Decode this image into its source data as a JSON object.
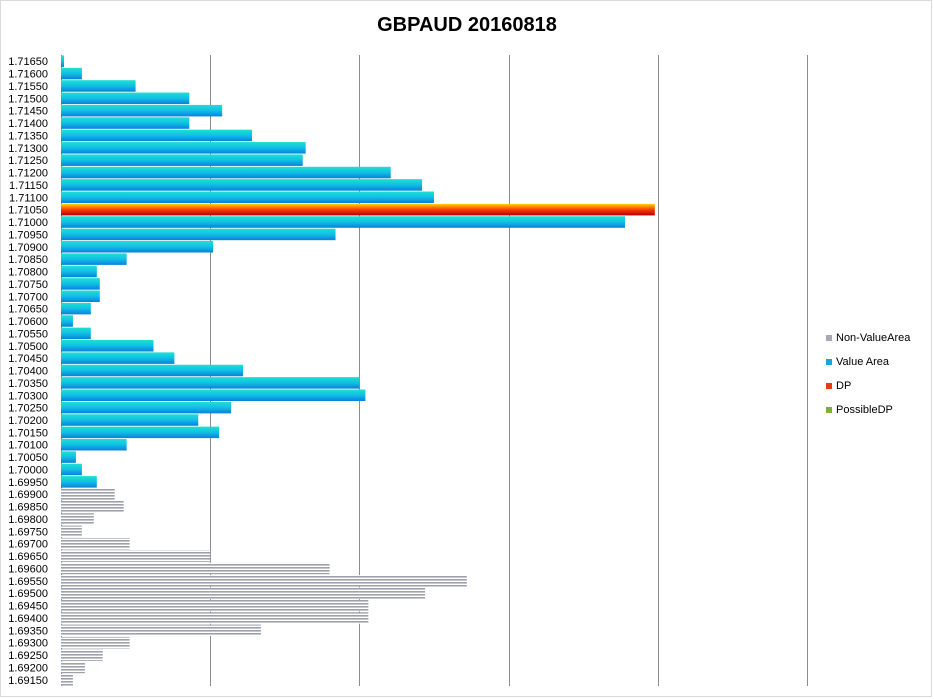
{
  "chart_data": {
    "type": "bar",
    "orientation": "horizontal",
    "title": "GBPAUD 20160818",
    "xlabel": "",
    "ylabel": "",
    "xlim": [
      0,
      50
    ],
    "x_gridline_values": [
      10,
      20,
      30,
      40,
      50
    ],
    "x_tick_labels_shown": false,
    "legend_placement": "right",
    "series": [
      {
        "name": "Non-ValueArea",
        "color": "#a6a9b3"
      },
      {
        "name": "Value Area",
        "color": "#1aa3e0"
      },
      {
        "name": "DP",
        "color": "#e63b0a"
      },
      {
        "name": "PossibleDP",
        "color": "#7fb038"
      }
    ],
    "bars": [
      {
        "price": "1.71650",
        "value": 0.2,
        "series": "Value Area"
      },
      {
        "price": "1.71600",
        "value": 1.4,
        "series": "Value Area"
      },
      {
        "price": "1.71550",
        "value": 5.0,
        "series": "Value Area"
      },
      {
        "price": "1.71500",
        "value": 8.6,
        "series": "Value Area"
      },
      {
        "price": "1.71450",
        "value": 10.8,
        "series": "Value Area"
      },
      {
        "price": "1.71400",
        "value": 8.6,
        "series": "Value Area"
      },
      {
        "price": "1.71350",
        "value": 12.8,
        "series": "Value Area"
      },
      {
        "price": "1.71300",
        "value": 16.4,
        "series": "Value Area"
      },
      {
        "price": "1.71250",
        "value": 16.2,
        "series": "Value Area"
      },
      {
        "price": "1.71200",
        "value": 22.1,
        "series": "Value Area"
      },
      {
        "price": "1.71150",
        "value": 24.2,
        "series": "Value Area"
      },
      {
        "price": "1.71100",
        "value": 25.0,
        "series": "Value Area"
      },
      {
        "price": "1.71050",
        "value": 39.8,
        "series": "DP"
      },
      {
        "price": "1.71000",
        "value": 37.8,
        "series": "Value Area"
      },
      {
        "price": "1.70950",
        "value": 18.4,
        "series": "Value Area"
      },
      {
        "price": "1.70900",
        "value": 10.2,
        "series": "Value Area"
      },
      {
        "price": "1.70850",
        "value": 4.4,
        "series": "Value Area"
      },
      {
        "price": "1.70800",
        "value": 2.4,
        "series": "Value Area"
      },
      {
        "price": "1.70750",
        "value": 2.6,
        "series": "Value Area"
      },
      {
        "price": "1.70700",
        "value": 2.6,
        "series": "Value Area"
      },
      {
        "price": "1.70650",
        "value": 2.0,
        "series": "Value Area"
      },
      {
        "price": "1.70600",
        "value": 0.8,
        "series": "Value Area"
      },
      {
        "price": "1.70550",
        "value": 2.0,
        "series": "Value Area"
      },
      {
        "price": "1.70500",
        "value": 6.2,
        "series": "Value Area"
      },
      {
        "price": "1.70450",
        "value": 7.6,
        "series": "Value Area"
      },
      {
        "price": "1.70400",
        "value": 12.2,
        "series": "Value Area"
      },
      {
        "price": "1.70350",
        "value": 20.0,
        "series": "Value Area"
      },
      {
        "price": "1.70300",
        "value": 20.4,
        "series": "Value Area"
      },
      {
        "price": "1.70250",
        "value": 11.4,
        "series": "Value Area"
      },
      {
        "price": "1.70200",
        "value": 9.2,
        "series": "Value Area"
      },
      {
        "price": "1.70150",
        "value": 10.6,
        "series": "Value Area"
      },
      {
        "price": "1.70100",
        "value": 4.4,
        "series": "Value Area"
      },
      {
        "price": "1.70050",
        "value": 1.0,
        "series": "Value Area"
      },
      {
        "price": "1.70000",
        "value": 1.4,
        "series": "Value Area"
      },
      {
        "price": "1.69950",
        "value": 2.4,
        "series": "Value Area"
      },
      {
        "price": "1.69900",
        "value": 3.6,
        "series": "Non-ValueArea"
      },
      {
        "price": "1.69850",
        "value": 4.2,
        "series": "Non-ValueArea"
      },
      {
        "price": "1.69800",
        "value": 2.2,
        "series": "Non-ValueArea"
      },
      {
        "price": "1.69750",
        "value": 1.4,
        "series": "Non-ValueArea"
      },
      {
        "price": "1.69700",
        "value": 4.6,
        "series": "Non-ValueArea"
      },
      {
        "price": "1.69650",
        "value": 10.0,
        "series": "Non-ValueArea"
      },
      {
        "price": "1.69600",
        "value": 18.0,
        "series": "Non-ValueArea"
      },
      {
        "price": "1.69550",
        "value": 27.2,
        "series": "Non-ValueArea"
      },
      {
        "price": "1.69500",
        "value": 24.4,
        "series": "Non-ValueArea"
      },
      {
        "price": "1.69450",
        "value": 20.6,
        "series": "Non-ValueArea"
      },
      {
        "price": "1.69400",
        "value": 20.6,
        "series": "Non-ValueArea"
      },
      {
        "price": "1.69350",
        "value": 13.4,
        "series": "Non-ValueArea"
      },
      {
        "price": "1.69300",
        "value": 4.6,
        "series": "Non-ValueArea"
      },
      {
        "price": "1.69250",
        "value": 2.8,
        "series": "Non-ValueArea"
      },
      {
        "price": "1.69200",
        "value": 1.6,
        "series": "Non-ValueArea"
      },
      {
        "price": "1.69150",
        "value": 0.8,
        "series": "Non-ValueArea"
      }
    ]
  }
}
